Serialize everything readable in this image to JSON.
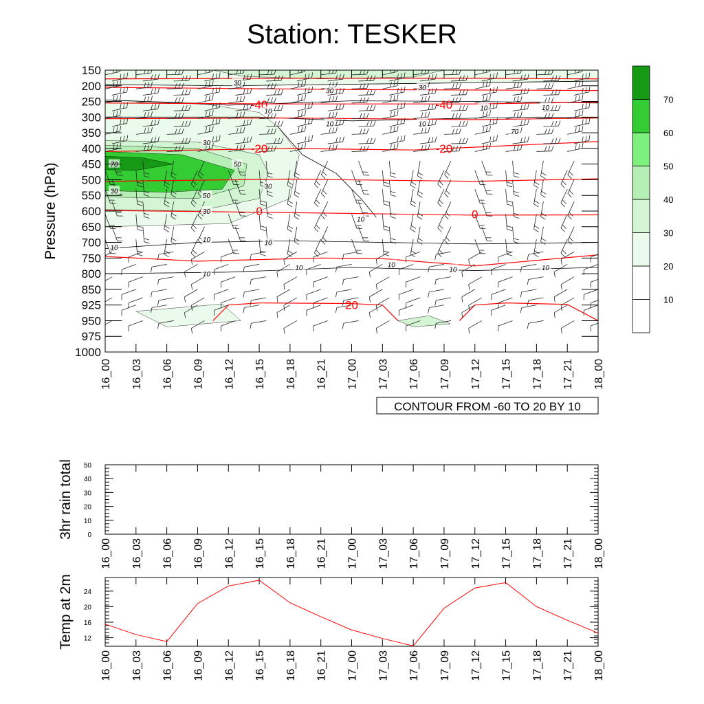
{
  "title": "Station: TESKER",
  "chart_data": [
    {
      "type": "contour",
      "name": "vertical-profile",
      "ylabel": "Pressure (hPa)",
      "pressure_levels": [
        150,
        200,
        250,
        300,
        350,
        400,
        450,
        500,
        550,
        600,
        650,
        700,
        750,
        800,
        850,
        925,
        950,
        975,
        1000
      ],
      "times": [
        "16_00",
        "16_03",
        "16_06",
        "16_09",
        "16_12",
        "16_15",
        "16_18",
        "16_21",
        "17_00",
        "17_03",
        "17_06",
        "17_09",
        "17_12",
        "17_15",
        "17_18",
        "17_21",
        "18_00"
      ],
      "contour_info": "CONTOUR FROM -60 TO 20 BY 10",
      "temperature_labels": [
        {
          "label": "-40",
          "time": "16_15",
          "pressure": 260
        },
        {
          "label": "-40",
          "time": "17_09",
          "pressure": 260
        },
        {
          "label": "-20",
          "time": "16_15",
          "pressure": 400
        },
        {
          "label": "-20",
          "time": "17_09",
          "pressure": 400
        },
        {
          "label": "0",
          "time": "16_15",
          "pressure": 600
        },
        {
          "label": "0",
          "time": "17_12",
          "pressure": 610
        },
        {
          "label": "20",
          "time": "17_00",
          "pressure": 925
        }
      ],
      "humidity_labels": [
        {
          "label": "30",
          "time": "16_12",
          "pressure": 190
        },
        {
          "label": "30",
          "time": "16_21",
          "pressure": 215
        },
        {
          "label": "30",
          "time": "17_06",
          "pressure": 205
        },
        {
          "label": "10",
          "time": "16_15",
          "pressure": 280
        },
        {
          "label": "10",
          "time": "16_21",
          "pressure": 320
        },
        {
          "label": "10",
          "time": "17_06",
          "pressure": 320
        },
        {
          "label": "10",
          "time": "17_12",
          "pressure": 270
        },
        {
          "label": "10",
          "time": "17_18",
          "pressure": 268
        },
        {
          "label": "70",
          "time": "17_15",
          "pressure": 345
        },
        {
          "label": "30",
          "time": "16_09",
          "pressure": 380
        },
        {
          "label": "50",
          "time": "16_12",
          "pressure": 450
        },
        {
          "label": "70",
          "time": "16_00",
          "pressure": 450
        },
        {
          "label": "30",
          "time": "16_00",
          "pressure": 535
        },
        {
          "label": "50",
          "time": "16_09",
          "pressure": 550
        },
        {
          "label": "30",
          "time": "16_15",
          "pressure": 520
        },
        {
          "label": "30",
          "time": "16_09",
          "pressure": 600
        },
        {
          "label": "10",
          "time": "17_00",
          "pressure": 625
        },
        {
          "label": "10",
          "time": "16_09",
          "pressure": 690
        },
        {
          "label": "10",
          "time": "16_15",
          "pressure": 700
        },
        {
          "label": "10",
          "time": "16_00",
          "pressure": 715
        },
        {
          "label": "10",
          "time": "16_18",
          "pressure": 780
        },
        {
          "label": "10",
          "time": "17_03",
          "pressure": 770
        },
        {
          "label": "10",
          "time": "17_09",
          "pressure": 785
        },
        {
          "label": "10",
          "time": "17_18",
          "pressure": 780
        },
        {
          "label": "10",
          "time": "16_09",
          "pressure": 800
        }
      ],
      "colorbar": {
        "levels": [
          10,
          20,
          30,
          40,
          50,
          60,
          70
        ],
        "colors": [
          "#ffffff",
          "#ffffff",
          "#ebfbeb",
          "#d3f5d3",
          "#b5efb5",
          "#7ef07e",
          "#33cc33",
          "#169a16"
        ]
      }
    },
    {
      "type": "line",
      "name": "rain",
      "ylabel": "3hr rain total",
      "ylim": [
        0,
        50
      ],
      "yticks": [
        0,
        10,
        20,
        30,
        40,
        50
      ],
      "x": [
        "16_00",
        "16_03",
        "16_06",
        "16_09",
        "16_12",
        "16_15",
        "16_18",
        "16_21",
        "17_00",
        "17_03",
        "17_06",
        "17_09",
        "17_12",
        "17_15",
        "17_18",
        "17_21",
        "18_00"
      ],
      "values": [
        0,
        0,
        0,
        0,
        0,
        0,
        0,
        0,
        0,
        0,
        0,
        0,
        0,
        0,
        0,
        0,
        0
      ]
    },
    {
      "type": "line",
      "name": "temp",
      "ylabel": "Temp at 2m",
      "ylim": [
        9.8,
        27.5
      ],
      "yticks": [
        12,
        16,
        20,
        24
      ],
      "x": [
        "16_00",
        "16_03",
        "16_06",
        "16_09",
        "16_12",
        "16_15",
        "16_18",
        "16_21",
        "17_00",
        "17_03",
        "17_06",
        "17_09",
        "17_12",
        "17_15",
        "17_18",
        "17_21",
        "18_00"
      ],
      "values": [
        15.5,
        12.8,
        11.0,
        20.8,
        25.3,
        26.8,
        21.0,
        17.4,
        14.0,
        11.8,
        9.9,
        19.6,
        24.8,
        26.2,
        20.0,
        16.5,
        13.2
      ],
      "color": "#ff0000"
    }
  ]
}
